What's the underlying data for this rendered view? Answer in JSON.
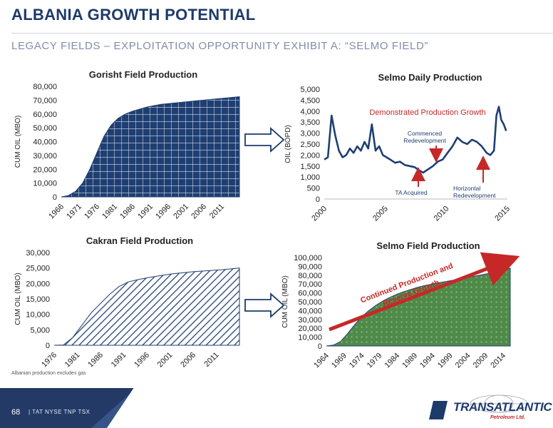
{
  "header": {
    "title": "ALBANIA GROWTH POTENTIAL",
    "subtitle": "LEGACY FIELDS – EXPLOITATION OPPORTUNITY  EXHIBIT A: “SELMO FIELD”"
  },
  "note": "Albanian production excludes gas",
  "footer": {
    "page": "68",
    "ticker": "|  TAT NYSE   TNP TSX",
    "logo": "TRANSATLANTIC",
    "logo_sub": "Petroleum Ltd."
  },
  "colors": {
    "navy": "#1d3a6b",
    "fill": "#1f3f73",
    "red": "#c62828",
    "green": "#2e7d32",
    "arrow": "#1d3a6b"
  },
  "chart_data": [
    {
      "id": "gorisht",
      "type": "area",
      "title": "Gorisht Field Production",
      "ylabel": "CUM OIL (MBO)",
      "ylim": [
        0,
        80000
      ],
      "yticks": [
        "0",
        "10,000",
        "20,000",
        "30,000",
        "40,000",
        "50,000",
        "60,000",
        "70,000",
        "80,000"
      ],
      "xlim": [
        1966,
        2016
      ],
      "xticks": [
        "1966",
        "1971",
        "1976",
        "1981",
        "1986",
        "1991",
        "1996",
        "2001",
        "2006",
        "2011"
      ],
      "x": [
        1966,
        1968,
        1970,
        1972,
        1974,
        1976,
        1978,
        1980,
        1982,
        1984,
        1986,
        1988,
        1990,
        1992,
        1994,
        1996,
        1998,
        2000,
        2002,
        2004,
        2006,
        2008,
        2010,
        2012,
        2014,
        2016
      ],
      "values": [
        0,
        1000,
        4000,
        10000,
        20000,
        32000,
        44000,
        52000,
        57000,
        60000,
        62000,
        63500,
        65000,
        66000,
        67000,
        67500,
        68000,
        68500,
        69000,
        69500,
        70000,
        70500,
        71000,
        71500,
        72000,
        72500
      ],
      "grid": false
    },
    {
      "id": "cakran",
      "type": "area",
      "title": "Cakran Field Production",
      "ylabel": "CUM OIL (MBO)",
      "ylim": [
        0,
        30000
      ],
      "yticks": [
        "0",
        "5,000",
        "10,000",
        "15,000",
        "20,000",
        "25,000",
        "30,000"
      ],
      "xlim": [
        1976,
        2016
      ],
      "xticks": [
        "1976",
        "1981",
        "1986",
        "1991",
        "1996",
        "2001",
        "2006",
        "2011"
      ],
      "x": [
        1976,
        1978,
        1980,
        1982,
        1984,
        1986,
        1988,
        1990,
        1992,
        1994,
        1996,
        1998,
        2000,
        2002,
        2004,
        2006,
        2008,
        2010,
        2012,
        2014,
        2016
      ],
      "values": [
        0,
        100,
        2500,
        6500,
        10500,
        13500,
        16500,
        19000,
        20500,
        21200,
        21800,
        22300,
        22800,
        23200,
        23500,
        23800,
        24000,
        24200,
        24400,
        24700,
        25000
      ],
      "grid": false
    },
    {
      "id": "selmo-daily",
      "type": "line",
      "title": "Selmo Daily Production",
      "ylabel": "OIL (BOPD)",
      "ylim": [
        0,
        5000
      ],
      "yticks": [
        "0",
        "500",
        "1,000",
        "1,500",
        "2,000",
        "2,500",
        "3,000",
        "3,500",
        "4,000",
        "4,500",
        "5,000"
      ],
      "xlim": [
        2000,
        2015
      ],
      "xticks": [
        "2000",
        "2005",
        "2010",
        "2015"
      ],
      "x": [
        2000,
        2000.3,
        2000.6,
        2000.9,
        2001.2,
        2001.5,
        2001.8,
        2002.1,
        2002.4,
        2002.7,
        2003.0,
        2003.3,
        2003.6,
        2003.9,
        2004.2,
        2004.5,
        2004.8,
        2005.1,
        2005.4,
        2005.8,
        2006.2,
        2006.6,
        2007.0,
        2007.4,
        2007.8,
        2008.1,
        2008.5,
        2008.9,
        2009.3,
        2009.7,
        2010.1,
        2010.5,
        2010.9,
        2011.3,
        2011.7,
        2012.1,
        2012.5,
        2012.9,
        2013.3,
        2013.6,
        2013.9,
        2014.1,
        2014.3,
        2014.5,
        2014.7,
        2014.9
      ],
      "values": [
        1800,
        1900,
        3800,
        2900,
        2200,
        1900,
        2000,
        2300,
        2100,
        2400,
        2200,
        2600,
        2300,
        3400,
        2200,
        2400,
        2000,
        1900,
        1800,
        1650,
        1700,
        1550,
        1500,
        1450,
        1300,
        1200,
        1350,
        1500,
        1700,
        1800,
        2100,
        2400,
        2800,
        2600,
        2500,
        2700,
        2600,
        2400,
        2100,
        2000,
        2200,
        3800,
        4200,
        3600,
        3400,
        3100
      ],
      "annotations": [
        "Demonstrated Production Growth",
        "Commenced Redevelopment",
        "TA Acquired",
        "Horizontal Redevelopment"
      ],
      "grid": false
    },
    {
      "id": "selmo-field",
      "type": "area",
      "title": "Selmo Field Production",
      "ylabel": "CUM OIL (MBO)",
      "ylim": [
        0,
        100000
      ],
      "yticks": [
        "0",
        "10,000",
        "20,000",
        "30,000",
        "40,000",
        "50,000",
        "60,000",
        "70,000",
        "80,000",
        "90,000",
        "100,000"
      ],
      "xlim": [
        1964,
        2016
      ],
      "xticks": [
        "1964",
        "1969",
        "1974",
        "1979",
        "1984",
        "1989",
        "1994",
        "1999",
        "2004",
        "2009",
        "2014"
      ],
      "x": [
        1964,
        1966,
        1968,
        1970,
        1972,
        1974,
        1976,
        1978,
        1980,
        1982,
        1984,
        1986,
        1988,
        1990,
        1992,
        1994,
        1996,
        1998,
        2000,
        2002,
        2004,
        2006,
        2008,
        2010,
        2012,
        2014,
        2016
      ],
      "values": [
        0,
        1000,
        5000,
        14000,
        24000,
        33000,
        40000,
        46000,
        51000,
        55000,
        58500,
        61500,
        64000,
        66500,
        68500,
        70000,
        71500,
        73000,
        74500,
        76000,
        77500,
        79000,
        80500,
        82000,
        84000,
        86000,
        88000
      ],
      "annotations": [
        "Continued Production and Reserve Growth"
      ],
      "grid": false
    }
  ]
}
